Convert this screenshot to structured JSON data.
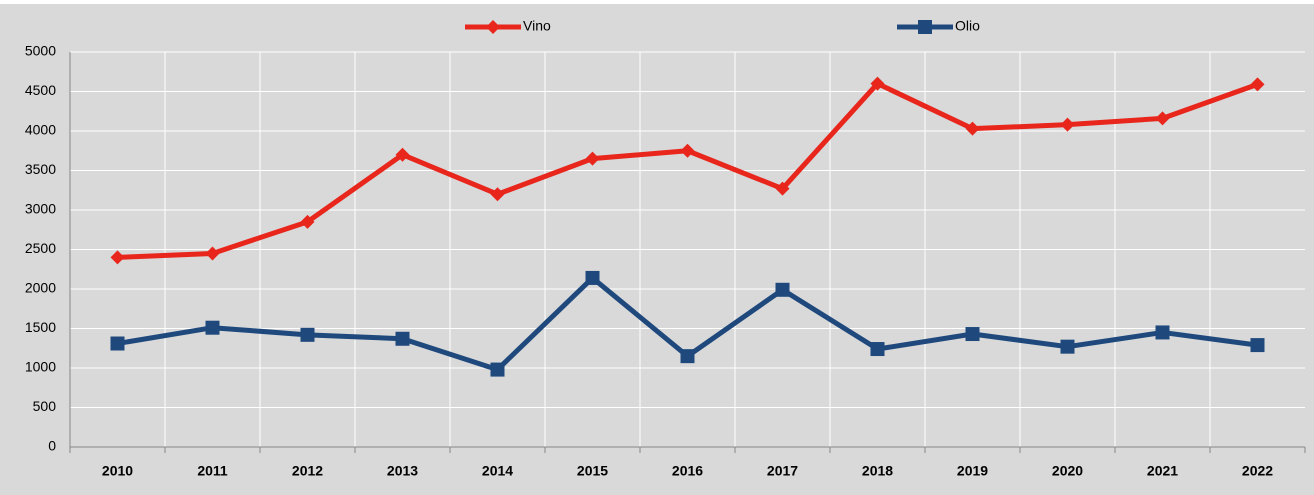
{
  "chart_data": {
    "type": "line",
    "categories": [
      "2010",
      "2011",
      "2012",
      "2013",
      "2014",
      "2015",
      "2016",
      "2017",
      "2018",
      "2019",
      "2020",
      "2021",
      "2022"
    ],
    "series": [
      {
        "name": "Vino",
        "color": "#e8261c",
        "marker": "diamond",
        "values": [
          2400,
          2450,
          2850,
          3700,
          3200,
          3650,
          3750,
          3270,
          4600,
          4030,
          4080,
          4160,
          4590
        ]
      },
      {
        "name": "Olio",
        "color": "#1f497d",
        "marker": "square",
        "values": [
          1310,
          1510,
          1420,
          1370,
          980,
          2140,
          1150,
          1990,
          1240,
          1430,
          1270,
          1450,
          1290
        ]
      }
    ],
    "ylim": [
      0,
      5000
    ],
    "yticks": [
      0,
      500,
      1000,
      1500,
      2000,
      2500,
      3000,
      3500,
      4000,
      4500,
      5000
    ],
    "grid": true,
    "legend": "top"
  }
}
